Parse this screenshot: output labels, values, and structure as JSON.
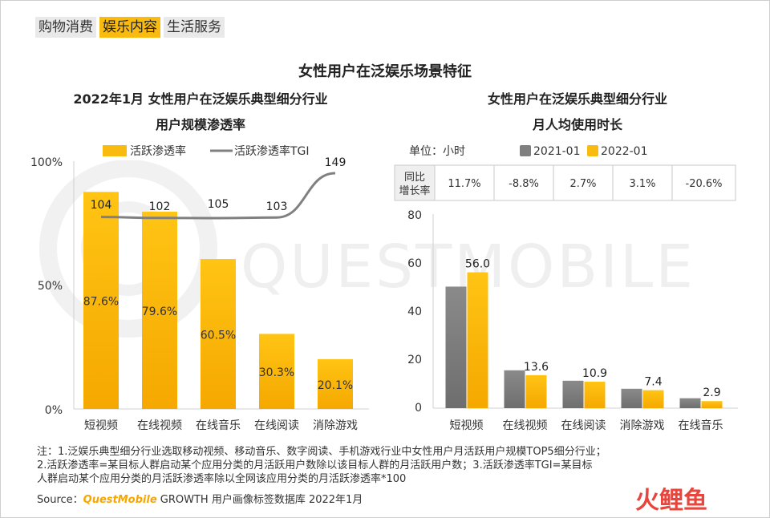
{
  "tabs": [
    {
      "label": "购物消费",
      "active": false
    },
    {
      "label": "娱乐内容",
      "active": true
    },
    {
      "label": "生活服务",
      "active": false
    }
  ],
  "main_title": "女性用户在泛娱乐场景特征",
  "left_title_line1": "2022年1月 女性用户在泛娱乐典型细分行业",
  "left_title_line2": "用户规模渗透率",
  "right_title_line1": "女性用户在泛娱乐典型细分行业",
  "right_title_line2": "月人均使用时长",
  "watermark_text": "QUESTMOBILE",
  "colors": {
    "accent": "#f9bb0f",
    "gray_bar": "#7f7f7f",
    "line": "#808080"
  },
  "chart_data": [
    {
      "type": "bar",
      "title": "2022年1月 女性用户在泛娱乐典型细分行业 用户规模渗透率",
      "categories": [
        "短视频",
        "在线视频",
        "在线音乐",
        "在线阅读",
        "消除游戏"
      ],
      "series": [
        {
          "name": "活跃渗透率",
          "values": [
            87.6,
            79.6,
            60.5,
            30.3,
            20.1
          ],
          "labels": [
            "87.6%",
            "79.6%",
            "60.5%",
            "30.3%",
            "20.1%"
          ]
        },
        {
          "name": "活跃渗透率TGI",
          "kind": "line",
          "values": [
            104,
            102,
            105,
            103,
            149
          ]
        }
      ],
      "yticks": [
        "100%",
        "50%",
        "0%"
      ],
      "ylim": [
        0,
        100
      ],
      "legend": "top"
    },
    {
      "type": "bar",
      "title": "女性用户在泛娱乐典型细分行业 月人均使用时长",
      "unit": "单位：小时",
      "categories": [
        "短视频",
        "在线视频",
        "在线阅读",
        "消除游戏",
        "在线音乐"
      ],
      "series": [
        {
          "name": "2021-01"
        },
        {
          "name": "2022-01",
          "values": [
            56.0,
            13.6,
            10.9,
            7.4,
            2.9
          ],
          "labels": [
            "56.0",
            "13.6",
            "10.9",
            "7.4",
            "2.9"
          ]
        }
      ],
      "series_2021_estimated": [
        50.1,
        15.6,
        11.3,
        8.0,
        4.1
      ],
      "yticks": [
        "80",
        "60",
        "40",
        "20",
        "0"
      ],
      "ylim": [
        0,
        80
      ],
      "growth_label": "同比增长率",
      "growth_label_line1": "同比",
      "growth_label_line2": "增长率",
      "growth": [
        "11.7%",
        "-8.8%",
        "2.7%",
        "3.1%",
        "-20.6%"
      ],
      "legend": "top"
    }
  ],
  "notes": [
    "注：1.泛娱乐典型细分行业选取移动视频、移动音乐、数字阅读、手机游戏行业中女性用户月活跃用户规模TOP5细分行业；",
    "2.活跃渗透率=某目标人群启动某个应用分类的月活跃用户数除以该目标人群的月活跃用户数；3.活跃渗透率TGI=某目标",
    "人群启动某个应用分类的月活跃渗透率除以全网该应用分类的月活跃渗透率*100"
  ],
  "source_prefix": "Source：",
  "source_brand": "QuestMobile",
  "source_suffix": " GROWTH 用户画像标签数据库 2022年1月",
  "logo_text": "火鲤鱼"
}
